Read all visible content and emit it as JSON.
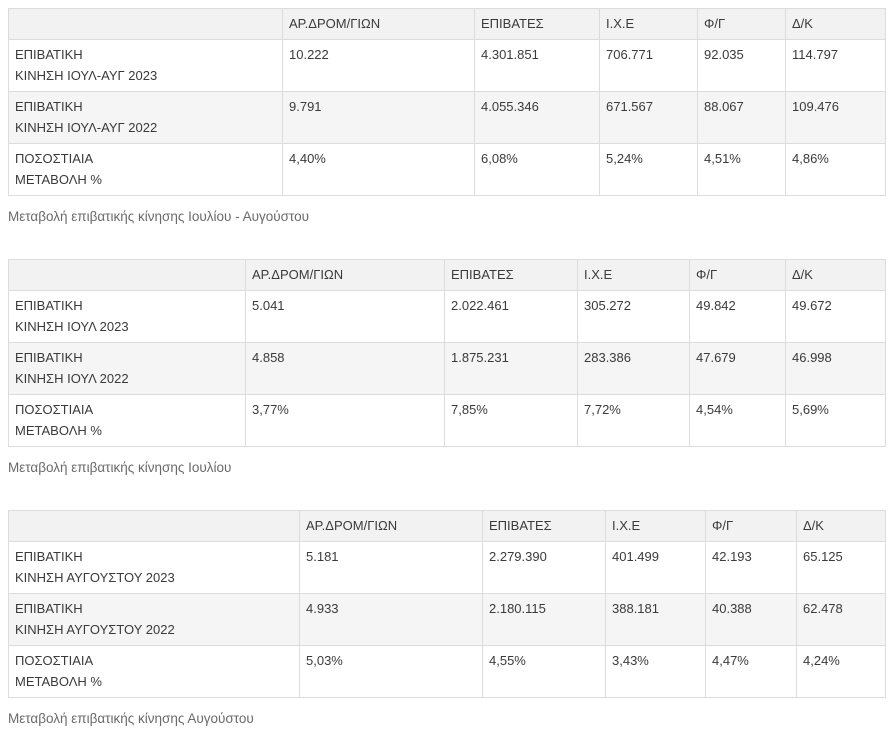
{
  "tables": [
    {
      "headers": [
        "",
        "ΑΡ.ΔΡΟΜ/ΓΙΩΝ",
        "ΕΠΙΒΑΤΕΣ",
        "Ι.Χ.Ε",
        "Φ/Γ",
        "Δ/Κ"
      ],
      "rows": [
        {
          "label1": "ΕΠΙΒΑΤΙΚΗ",
          "label2": "ΚΙΝΗΣΗ ΙΟΥΛ-ΑΥΓ 2023",
          "values": [
            "10.222",
            "4.301.851",
            "706.771",
            "92.035",
            "114.797"
          ]
        },
        {
          "label1": "ΕΠΙΒΑΤΙΚΗ",
          "label2": "ΚΙΝΗΣΗ ΙΟΥΛ-ΑΥΓ 2022",
          "values": [
            "9.791",
            "4.055.346",
            "671.567",
            "88.067",
            "109.476"
          ]
        },
        {
          "label1": "ΠΟΣΟΣΤΙΑΙΑ",
          "label2": "ΜΕΤΑΒΟΛΗ %",
          "values": [
            "4,40%",
            "6,08%",
            "5,24%",
            "4,51%",
            "4,86%"
          ]
        }
      ],
      "caption": "Μεταβολή επιβατικής κίνησης Ιουλίου - Αυγούστου"
    },
    {
      "headers": [
        "",
        "ΑΡ.ΔΡΟΜ/ΓΙΩΝ",
        "ΕΠΙΒΑΤΕΣ",
        "Ι.Χ.Ε",
        "Φ/Γ",
        "Δ/Κ"
      ],
      "rows": [
        {
          "label1": "ΕΠΙΒΑΤΙΚΗ",
          "label2": "ΚΙΝΗΣΗ ΙΟΥΛ 2023",
          "values": [
            "5.041",
            "2.022.461",
            "305.272",
            "49.842",
            "49.672"
          ]
        },
        {
          "label1": "ΕΠΙΒΑΤΙΚΗ",
          "label2": "ΚΙΝΗΣΗ ΙΟΥΛ 2022",
          "values": [
            "4.858",
            "1.875.231",
            "283.386",
            "47.679",
            "46.998"
          ]
        },
        {
          "label1": "ΠΟΣΟΣΤΙΑΙΑ",
          "label2": "ΜΕΤΑΒΟΛΗ %",
          "values": [
            "3,77%",
            "7,85%",
            "7,72%",
            "4,54%",
            "5,69%"
          ]
        }
      ],
      "caption": "Μεταβολή επιβατικής κίνησης Ιουλίου"
    },
    {
      "headers": [
        "",
        "ΑΡ.ΔΡΟΜ/ΓΙΩΝ",
        "ΕΠΙΒΑΤΕΣ",
        "Ι.Χ.Ε",
        "Φ/Γ",
        "Δ/Κ"
      ],
      "rows": [
        {
          "label1": "ΕΠΙΒΑΤΙΚΗ",
          "label2": "ΚΙΝΗΣΗ ΑΥΓΟΥΣΤΟΥ 2023",
          "values": [
            "5.181",
            "2.279.390",
            "401.499",
            "42.193",
            "65.125"
          ]
        },
        {
          "label1": "ΕΠΙΒΑΤΙΚΗ",
          "label2": "ΚΙΝΗΣΗ ΑΥΓΟΥΣΤΟΥ 2022",
          "values": [
            "4.933",
            "2.180.115",
            "388.181",
            "40.388",
            "62.478"
          ]
        },
        {
          "label1": "ΠΟΣΟΣΤΙΑΙΑ",
          "label2": "ΜΕΤΑΒΟΛΗ %",
          "values": [
            "5,03%",
            "4,55%",
            "3,43%",
            "4,47%",
            "4,24%"
          ]
        }
      ],
      "caption": "Μεταβολή επιβατικής κίνησης Αυγούστου"
    }
  ]
}
